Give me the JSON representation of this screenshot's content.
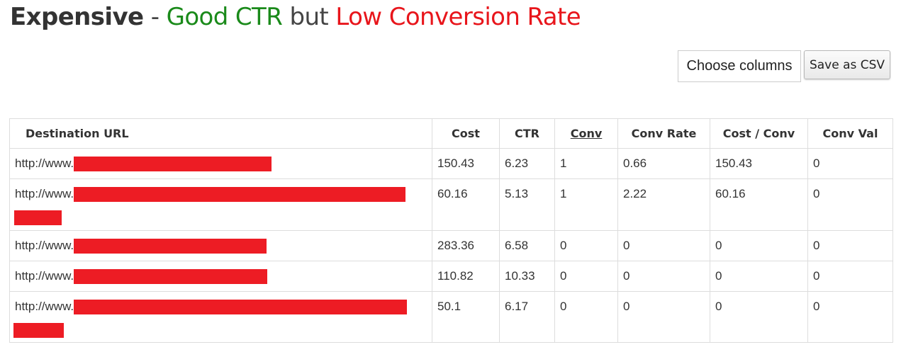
{
  "title": {
    "strong": "Expensive",
    "dash": " - ",
    "good": "Good CTR",
    "but": " but ",
    "bad": "Low Conversion Rate",
    "colors": {
      "good": "#1a8a1a",
      "bad": "#e8151b"
    }
  },
  "toolbar": {
    "choose_columns_label": "Choose columns",
    "save_csv_label": "Save as CSV"
  },
  "table": {
    "columns": [
      "Destination URL",
      "Cost",
      "CTR",
      "Conv",
      "Conv Rate",
      "Cost / Conv",
      "Conv Val"
    ],
    "sorted_column": "Conv",
    "redaction_color": "#ed1c24",
    "rows": [
      {
        "url_prefix": "http://www.",
        "cost": "150.43",
        "ctr": "6.23",
        "conv": "1",
        "conv_rate": "0.66",
        "cost_per_conv": "150.43",
        "conv_val": "0"
      },
      {
        "url_prefix": "http://www.",
        "cost": "60.16",
        "ctr": "5.13",
        "conv": "1",
        "conv_rate": "2.22",
        "cost_per_conv": "60.16",
        "conv_val": "0"
      },
      {
        "url_prefix": "http://www.",
        "cost": "283.36",
        "ctr": "6.58",
        "conv": "0",
        "conv_rate": "0",
        "cost_per_conv": "0",
        "conv_val": "0"
      },
      {
        "url_prefix": "http://www.",
        "cost": "110.82",
        "ctr": "10.33",
        "conv": "0",
        "conv_rate": "0",
        "cost_per_conv": "0",
        "conv_val": "0"
      },
      {
        "url_prefix": "http://www.",
        "cost": "50.1",
        "ctr": "6.17",
        "conv": "0",
        "conv_rate": "0",
        "cost_per_conv": "0",
        "conv_val": "0"
      }
    ]
  }
}
